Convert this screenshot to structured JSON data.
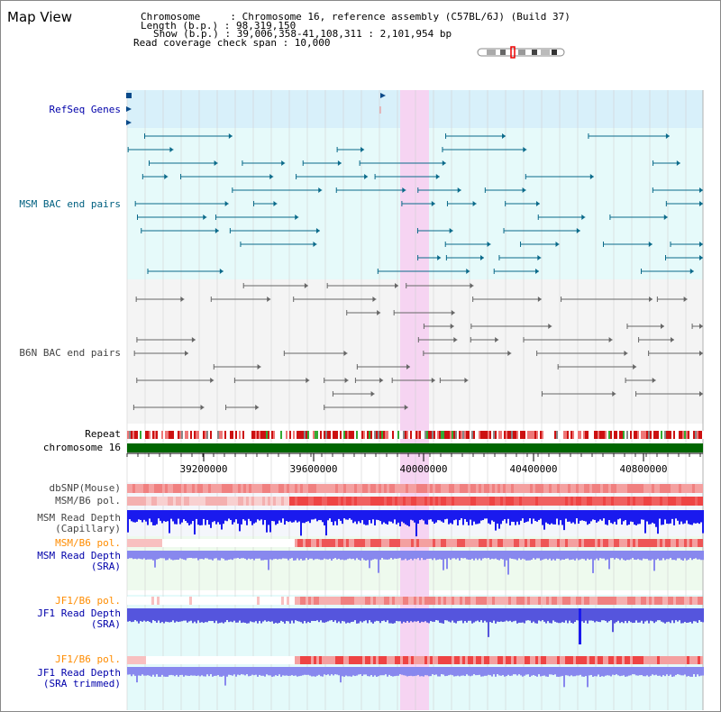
{
  "title": "Map View",
  "info": {
    "chromosome": "Chromosome     : Chromosome 16, reference assembly (C57BL/6J) (Build 37)",
    "length": "Length (b.p.) : 98,319,150",
    "show": "Show (b.p.) : 39,006,358-41,108,311 : 2,101,954 bp",
    "coverage": "Read coverage check span : 10,000"
  },
  "tracks": {
    "refseq": "RefSeq Genes",
    "msm_bac": "MSM BAC end pairs",
    "b6n_bac": "B6N BAC end pairs",
    "repeat": "Repeat",
    "chromosome": "chromosome 16",
    "dbsnp": "dbSNP(Mouse)",
    "msm_b6_pol_1": "MSM/B6 pol.",
    "msm_depth_cap_1": "MSM Read Depth",
    "msm_depth_cap_2": "(Capillary)",
    "msm_b6_pol_2": "MSM/B6 pol.",
    "msm_depth_sra_1": "MSM Read Depth",
    "msm_depth_sra_2": "(SRA)",
    "jf1_b6_pol_1": "JF1/B6 pol.",
    "jf1_depth_sra_1": "JF1 Read Depth",
    "jf1_depth_sra_2": "(SRA)",
    "jf1_b6_pol_2": "JF1/B6 pol.",
    "jf1_depth_trim_1": "JF1 Read Depth",
    "jf1_depth_trim_2": "(SRA trimmed)"
  },
  "axis_ticks": [
    "39200000",
    "39600000",
    "40000000",
    "40400000",
    "40800000"
  ],
  "colors": {
    "refseq_label": "#0000aa",
    "msm_label": "#006080",
    "b6n_label": "#444444",
    "pol_orange": "#ff8c00",
    "depth_blue": "#0000aa",
    "chromosome_bar": "#006600",
    "highlight": "#f6d4f2"
  }
}
